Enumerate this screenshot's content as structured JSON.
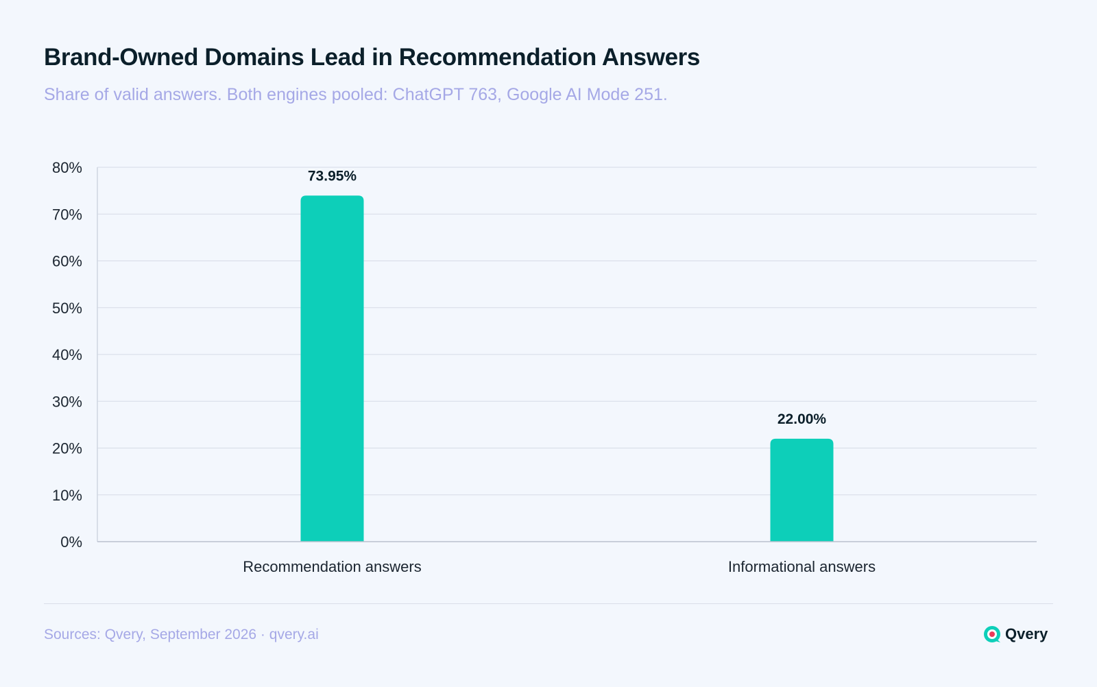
{
  "header": {
    "title": "Brand-Owned Domains Lead in Recommendation Answers",
    "subtitle": "Share of valid answers. Both engines pooled: ChatGPT 763, Google AI Mode 251."
  },
  "chart_data": {
    "type": "bar",
    "categories": [
      "Recommendation answers",
      "Informational answers"
    ],
    "values": [
      73.95,
      22.0
    ],
    "value_labels": [
      "73.95%",
      "22.00%"
    ],
    "ylim": [
      0,
      80
    ],
    "yticks": [
      0,
      10,
      20,
      30,
      40,
      50,
      60,
      70,
      80
    ],
    "ytick_labels": [
      "0%",
      "10%",
      "20%",
      "30%",
      "40%",
      "50%",
      "60%",
      "70%",
      "80%"
    ],
    "grid": true,
    "legend": "none",
    "bar_color": "#0dcfb9"
  },
  "footer": {
    "source": "Sources: Qvery, September 2026 · qvery.ai",
    "brand_name": "Qvery",
    "brand_icon": "qvery-logo-icon"
  }
}
